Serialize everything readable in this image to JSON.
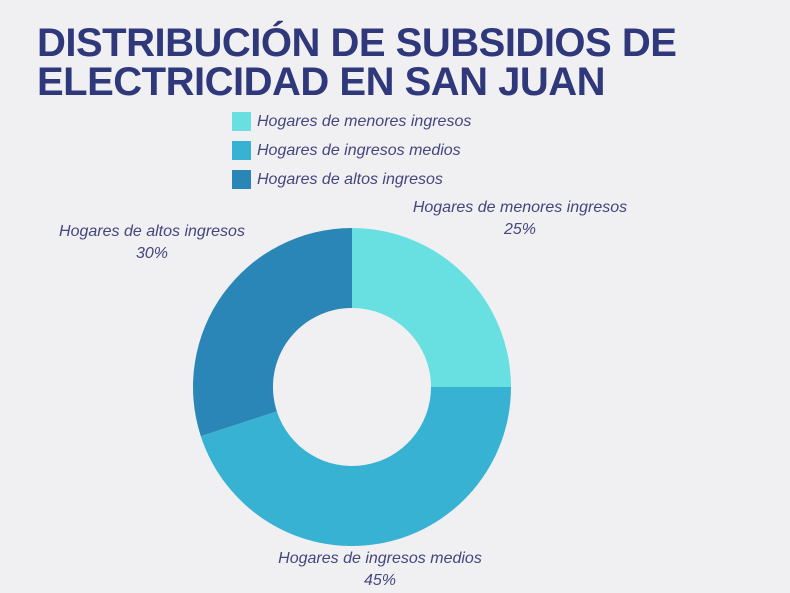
{
  "page": {
    "background": "#F0F0F2",
    "title_color": "#2F387A",
    "label_color": "#44467D"
  },
  "title": {
    "line1": "DISTRIBUCIÓN DE SUBSIDIOS DE",
    "line2": "ELECTRICIDAD EN SAN JUAN"
  },
  "legend": {
    "items": [
      {
        "label": "Hogares de menores ingresos",
        "color": "#68E0E2"
      },
      {
        "label": "Hogares de ingresos medios",
        "color": "#38B2D3"
      },
      {
        "label": "Hogares de altos ingresos",
        "color": "#2B86B8"
      }
    ]
  },
  "chart_data": {
    "type": "pie",
    "title": "Distribución de subsidios de electricidad en San Juan",
    "categories": [
      "Hogares de menores ingresos",
      "Hogares de ingresos medios",
      "Hogares de altos ingresos"
    ],
    "values": [
      25,
      45,
      30
    ],
    "unit": "%",
    "colors": [
      "#68E0E2",
      "#38B2D3",
      "#2B86B8"
    ],
    "donut": true,
    "inner_radius_ratio": 0.497,
    "start_angle_deg": 0,
    "direction": "clockwise",
    "legend_position": "top",
    "labels": [
      {
        "text": "Hogares de menores ingresos",
        "value": "25%"
      },
      {
        "text": "Hogares de ingresos medios",
        "value": "45%"
      },
      {
        "text": "Hogares de altos ingresos",
        "value": "30%"
      }
    ]
  }
}
